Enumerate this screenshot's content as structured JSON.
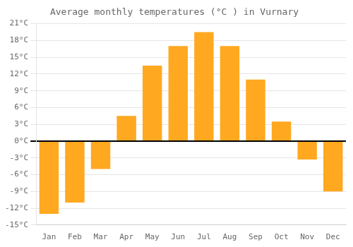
{
  "chart_data": {
    "type": "bar",
    "title": "Average monthly temperatures (°C ) in Vurnary",
    "categories": [
      "Jan",
      "Feb",
      "Mar",
      "Apr",
      "May",
      "Jun",
      "Jul",
      "Aug",
      "Sep",
      "Oct",
      "Nov",
      "Dec"
    ],
    "values": [
      -13,
      -11,
      -5,
      4.5,
      13.5,
      17,
      19.5,
      17,
      11,
      3.5,
      -3.3,
      -9
    ],
    "color": "#FFA820",
    "ylim": [
      -15,
      21
    ],
    "yticks": [
      {
        "value": -15,
        "label": "-15°C"
      },
      {
        "value": -12,
        "label": "-12°C"
      },
      {
        "value": -9,
        "label": "-9°C"
      },
      {
        "value": -6,
        "label": "-6°C"
      },
      {
        "value": -3,
        "label": "-3°C"
      },
      {
        "value": 0,
        "label": "0°C"
      },
      {
        "value": 3,
        "label": "3°C"
      },
      {
        "value": 6,
        "label": "6°C"
      },
      {
        "value": 9,
        "label": "9°C"
      },
      {
        "value": 12,
        "label": "12°C"
      },
      {
        "value": 15,
        "label": "15°C"
      },
      {
        "value": 18,
        "label": "18°C"
      },
      {
        "value": 21,
        "label": "21°C"
      }
    ],
    "grid": true
  }
}
